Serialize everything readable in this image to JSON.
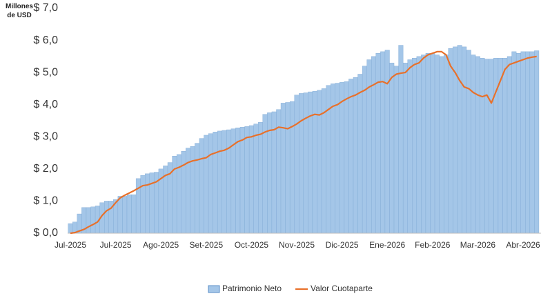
{
  "chart_data": {
    "type": "bar_line",
    "y_unit": "Millones de USD",
    "categories": [
      "Jul-2025",
      null,
      null,
      null,
      null,
      null,
      null,
      null,
      null,
      null,
      "Jul-2025",
      null,
      null,
      null,
      null,
      null,
      null,
      null,
      null,
      null,
      "Ago-2025",
      null,
      null,
      null,
      null,
      null,
      null,
      null,
      null,
      null,
      "Set-2025",
      null,
      null,
      null,
      null,
      null,
      null,
      null,
      null,
      null,
      "Oct-2025",
      null,
      null,
      null,
      null,
      null,
      null,
      null,
      null,
      null,
      "Nov-2025",
      null,
      null,
      null,
      null,
      null,
      null,
      null,
      null,
      null,
      "Dic-2025",
      null,
      null,
      null,
      null,
      null,
      null,
      null,
      null,
      null,
      "Ene-2026",
      null,
      null,
      null,
      null,
      null,
      null,
      null,
      null,
      null,
      "Feb-2026",
      null,
      null,
      null,
      null,
      null,
      null,
      null,
      null,
      null,
      "Mar-2026",
      null,
      null,
      null,
      null,
      null,
      null,
      null,
      null,
      null,
      "Abr-2026",
      null,
      null,
      null
    ],
    "series": [
      {
        "name": "Patrimonio Neto",
        "kind": "bar",
        "color": "#a4c6e8",
        "values": [
          0.3,
          0.35,
          0.6,
          0.8,
          0.8,
          0.82,
          0.85,
          0.95,
          1.0,
          1.0,
          1.05,
          1.15,
          1.15,
          1.2,
          1.2,
          1.7,
          1.8,
          1.85,
          1.88,
          1.9,
          2.0,
          2.1,
          2.2,
          2.4,
          2.45,
          2.55,
          2.65,
          2.7,
          2.8,
          2.95,
          3.05,
          3.1,
          3.15,
          3.18,
          3.2,
          3.22,
          3.25,
          3.28,
          3.3,
          3.32,
          3.35,
          3.4,
          3.45,
          3.7,
          3.75,
          3.78,
          3.85,
          4.05,
          4.07,
          4.1,
          4.3,
          4.35,
          4.37,
          4.4,
          4.42,
          4.45,
          4.5,
          4.6,
          4.65,
          4.67,
          4.7,
          4.72,
          4.8,
          4.85,
          4.95,
          5.2,
          5.4,
          5.5,
          5.6,
          5.65,
          5.7,
          5.3,
          5.2,
          5.85,
          5.3,
          5.4,
          5.45,
          5.5,
          5.55,
          5.6,
          5.6,
          5.55,
          5.5,
          5.55,
          5.75,
          5.8,
          5.85,
          5.8,
          5.7,
          5.55,
          5.5,
          5.45,
          5.42,
          5.42,
          5.45,
          5.45,
          5.45,
          5.5,
          5.65,
          5.6,
          5.65,
          5.65,
          5.65,
          5.68
        ]
      },
      {
        "name": "Valor Cuotaparte",
        "kind": "line",
        "color": "#e8702a",
        "values": [
          0.0,
          0.02,
          0.07,
          0.12,
          0.2,
          0.27,
          0.35,
          0.55,
          0.7,
          0.78,
          0.95,
          1.1,
          1.18,
          1.25,
          1.32,
          1.4,
          1.48,
          1.5,
          1.55,
          1.6,
          1.7,
          1.8,
          1.85,
          2.0,
          2.05,
          2.12,
          2.2,
          2.25,
          2.28,
          2.32,
          2.35,
          2.45,
          2.5,
          2.55,
          2.58,
          2.65,
          2.75,
          2.85,
          2.9,
          2.98,
          3.0,
          3.05,
          3.08,
          3.15,
          3.2,
          3.22,
          3.3,
          3.28,
          3.25,
          3.32,
          3.4,
          3.5,
          3.58,
          3.65,
          3.7,
          3.68,
          3.75,
          3.85,
          3.95,
          4.0,
          4.1,
          4.18,
          4.25,
          4.3,
          4.38,
          4.45,
          4.55,
          4.62,
          4.7,
          4.72,
          4.65,
          4.85,
          4.95,
          4.98,
          5.0,
          5.15,
          5.25,
          5.3,
          5.45,
          5.55,
          5.6,
          5.65,
          5.65,
          5.55,
          5.2,
          5.0,
          4.75,
          4.55,
          4.5,
          4.38,
          4.3,
          4.25,
          4.3,
          4.05,
          4.4,
          4.75,
          5.1,
          5.25,
          5.3,
          5.35,
          5.4,
          5.45,
          5.48,
          5.5
        ]
      }
    ],
    "ylim": [
      0,
      7
    ],
    "yticks": [
      {
        "value": 0,
        "label": "$ 0,0"
      },
      {
        "value": 1,
        "label": "$ 1,0"
      },
      {
        "value": 2,
        "label": "$ 2,0"
      },
      {
        "value": 3,
        "label": "$ 3,0"
      },
      {
        "value": 4,
        "label": "$ 4,0"
      },
      {
        "value": 5,
        "label": "$ 5,0"
      },
      {
        "value": 6,
        "label": "$ 6,0"
      },
      {
        "value": 7,
        "label": "$ 7,0"
      }
    ],
    "grid": false,
    "legend": "bottom"
  }
}
